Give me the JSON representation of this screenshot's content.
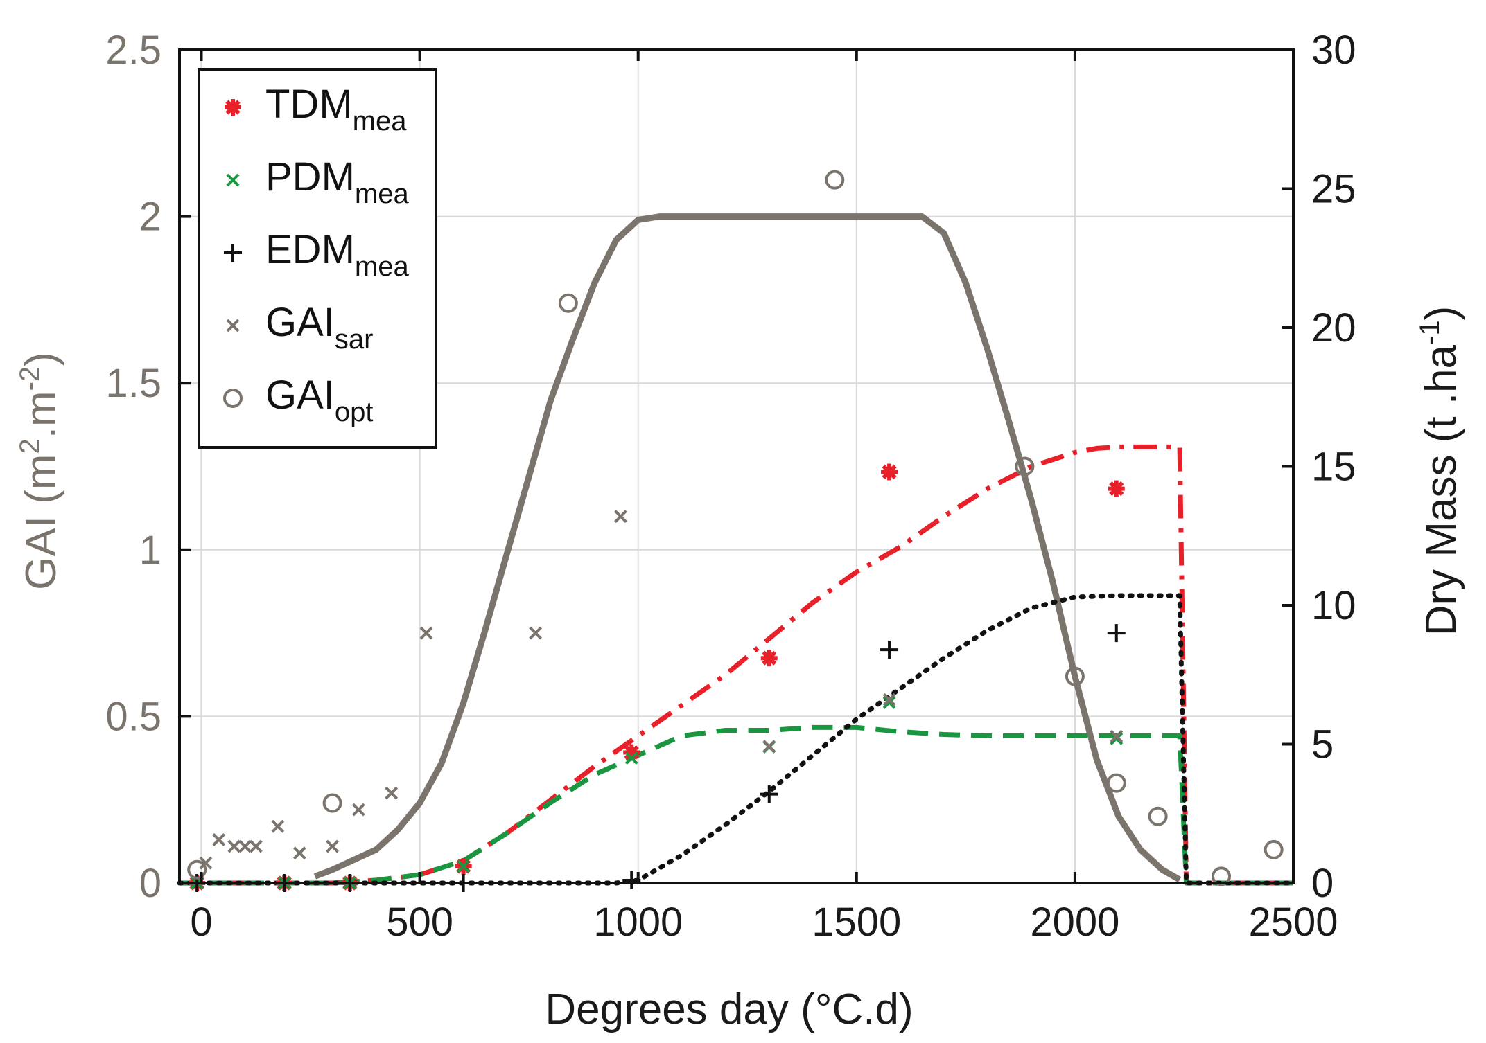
{
  "chart_data": {
    "type": "line",
    "xlabel": "Degrees day (°C.d)",
    "ylabel_left": {
      "base": "GAI (m",
      "sup1": "2",
      "mid": ".m",
      "sup2": "-2",
      "end": ")"
    },
    "ylabel_right": {
      "base": "Dry Mass (t .ha",
      "sup": "-1",
      "end": ")"
    },
    "xlim": [
      -50,
      2500
    ],
    "ylim_left": [
      0,
      2.5
    ],
    "ylim_right": [
      0,
      30
    ],
    "xticks": [
      "0",
      "500",
      "1000",
      "1500",
      "2000",
      "2500"
    ],
    "xtick_values": [
      0,
      500,
      1000,
      1500,
      2000,
      2500
    ],
    "yticks_left": [
      "0",
      "0.5",
      "1",
      "1.5",
      "2",
      "2.5"
    ],
    "ytick_values_left": [
      0,
      0.5,
      1,
      1.5,
      2,
      2.5
    ],
    "yticks_right": [
      "0",
      "5",
      "10",
      "15",
      "20",
      "25",
      "30"
    ],
    "ytick_values_right": [
      0,
      5,
      10,
      15,
      20,
      25,
      30
    ],
    "grid": true,
    "legend_position": "top-left",
    "legend": [
      {
        "base": "TDM",
        "sub": "mea",
        "marker": "asterisk",
        "color": "#e8202a"
      },
      {
        "base": "PDM",
        "sub": "mea",
        "marker": "x",
        "color": "#1a9641"
      },
      {
        "base": "EDM",
        "sub": "mea",
        "marker": "plus",
        "color": "#111111"
      },
      {
        "base": "GAI",
        "sub": "sar",
        "marker": "x",
        "color": "#7a746c"
      },
      {
        "base": "GAI",
        "sub": "opt",
        "marker": "circle",
        "color": "#7a746c"
      }
    ],
    "lines": [
      {
        "id": "gai-model",
        "axis": "left",
        "color": "#7a746c",
        "style": "solid",
        "x": [
          260,
          300,
          350,
          400,
          450,
          500,
          550,
          600,
          650,
          700,
          750,
          800,
          850,
          900,
          950,
          1000,
          1050,
          1100,
          1200,
          1300,
          1400,
          1500,
          1600,
          1650,
          1700,
          1750,
          1800,
          1850,
          1900,
          1950,
          2000,
          2050,
          2100,
          2150,
          2200,
          2240
        ],
        "y": [
          0.02,
          0.04,
          0.07,
          0.1,
          0.16,
          0.24,
          0.36,
          0.54,
          0.76,
          0.99,
          1.22,
          1.45,
          1.63,
          1.8,
          1.93,
          1.99,
          2.0,
          2.0,
          2.0,
          2.0,
          2.0,
          2.0,
          2.0,
          2.0,
          1.95,
          1.8,
          1.6,
          1.38,
          1.15,
          0.9,
          0.62,
          0.37,
          0.2,
          0.1,
          0.04,
          0.01
        ]
      },
      {
        "id": "tdm-model",
        "axis": "right",
        "color": "#e8202a",
        "style": "dashdot",
        "x": [
          -50,
          300,
          400,
          500,
          600,
          700,
          800,
          900,
          1000,
          1100,
          1200,
          1300,
          1400,
          1500,
          1600,
          1700,
          1800,
          1900,
          2000,
          2050,
          2100,
          2150,
          2240,
          2255,
          2500
        ],
        "y": [
          0,
          0,
          0.1,
          0.3,
          0.8,
          1.8,
          3.0,
          4.2,
          5.3,
          6.4,
          7.5,
          8.8,
          10.1,
          11.2,
          12.1,
          13.2,
          14.2,
          15.0,
          15.5,
          15.65,
          15.7,
          15.7,
          15.7,
          0,
          0
        ]
      },
      {
        "id": "pdm-model",
        "axis": "right",
        "color": "#1a9641",
        "style": "dashed",
        "x": [
          -50,
          300,
          400,
          500,
          600,
          700,
          800,
          900,
          1000,
          1100,
          1200,
          1300,
          1400,
          1500,
          1600,
          1700,
          1800,
          1900,
          2000,
          2100,
          2240,
          2255,
          2500
        ],
        "y": [
          0,
          0,
          0.1,
          0.3,
          0.8,
          1.8,
          2.9,
          3.9,
          4.6,
          5.3,
          5.5,
          5.5,
          5.6,
          5.6,
          5.45,
          5.35,
          5.3,
          5.3,
          5.3,
          5.3,
          5.3,
          0,
          0
        ]
      },
      {
        "id": "edm-model",
        "axis": "right",
        "color": "#111111",
        "style": "dotted",
        "x": [
          -50,
          950,
          1000,
          1100,
          1200,
          1300,
          1400,
          1500,
          1600,
          1700,
          1800,
          1900,
          2000,
          2100,
          2200,
          2240,
          2255,
          2500
        ],
        "y": [
          0,
          0,
          0.1,
          1.0,
          2.1,
          3.3,
          4.6,
          5.9,
          7.0,
          8.1,
          9.1,
          9.9,
          10.3,
          10.35,
          10.35,
          10.35,
          0,
          0
        ]
      }
    ],
    "points": {
      "TDM_mea": {
        "axis": "right",
        "x": [
          -10,
          190,
          340,
          600,
          985,
          1300,
          1575,
          2095
        ],
        "y": [
          0,
          0,
          0,
          0.6,
          4.7,
          8.1,
          14.8,
          14.2
        ]
      },
      "PDM_mea": {
        "axis": "right",
        "x": [
          -10,
          190,
          340,
          600,
          985,
          1300,
          1575,
          2095
        ],
        "y": [
          0,
          0,
          0,
          0.6,
          4.5,
          4.9,
          6.5,
          5.2
        ]
      },
      "EDM_mea": {
        "axis": "right",
        "x": [
          -10,
          190,
          340,
          600,
          985,
          1300,
          1575,
          2095
        ],
        "y": [
          0,
          0,
          0,
          0,
          0.1,
          3.2,
          8.4,
          9.0
        ]
      },
      "GAI_sar": {
        "axis": "left",
        "x": [
          10,
          40,
          75,
          100,
          125,
          175,
          225,
          300,
          360,
          435,
          515,
          765,
          960,
          1300,
          1575,
          2095
        ],
        "y": [
          0.06,
          0.13,
          0.11,
          0.11,
          0.11,
          0.17,
          0.09,
          0.11,
          0.22,
          0.27,
          0.75,
          0.75,
          1.1,
          0.41,
          0.55,
          0.44
        ]
      },
      "GAI_opt": {
        "axis": "left",
        "x": [
          -10,
          300,
          840,
          1450,
          1885,
          2000,
          2095,
          2190,
          2335,
          2455
        ],
        "y": [
          0.04,
          0.24,
          1.74,
          2.11,
          1.25,
          0.62,
          0.3,
          0.2,
          0.02,
          0.1
        ]
      }
    }
  }
}
